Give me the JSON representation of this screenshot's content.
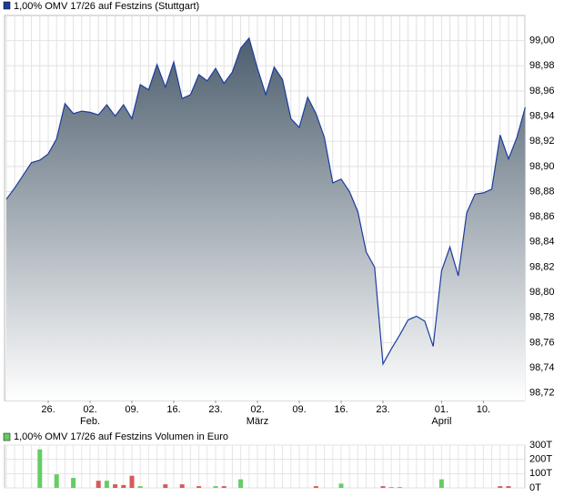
{
  "chart_data": [
    {
      "type": "area",
      "title": "1,00% OMV 17/26 auf Festzins (Stuttgart)",
      "color": "#1c3c9c",
      "fill_top": "#4d5e6e",
      "fill_bottom": "#ffffff",
      "grid": true,
      "categories": [
        null,
        null,
        null,
        null,
        null,
        "26.",
        null,
        null,
        null,
        null,
        "02.",
        null,
        null,
        null,
        null,
        "09.",
        null,
        null,
        null,
        null,
        "16.",
        null,
        null,
        null,
        null,
        "23.",
        null,
        null,
        null,
        null,
        "02.",
        null,
        null,
        null,
        null,
        "09.",
        null,
        null,
        null,
        null,
        "16.",
        null,
        null,
        null,
        null,
        "23.",
        null,
        null,
        null,
        null,
        null,
        null,
        "01.",
        null,
        null,
        null,
        null,
        "10.",
        null,
        null,
        null,
        null,
        null
      ],
      "month_labels": [
        null,
        null,
        null,
        null,
        null,
        null,
        null,
        null,
        null,
        null,
        "Feb.",
        null,
        null,
        null,
        null,
        null,
        null,
        null,
        null,
        null,
        null,
        null,
        null,
        null,
        null,
        null,
        null,
        null,
        null,
        null,
        "März",
        null,
        null,
        null,
        null,
        null,
        null,
        null,
        null,
        null,
        null,
        null,
        null,
        null,
        null,
        null,
        null,
        null,
        null,
        null,
        null,
        null,
        "April",
        null,
        null,
        null,
        null,
        null,
        null,
        null,
        null,
        null,
        null
      ],
      "values": [
        98.874,
        98.883,
        98.893,
        98.903,
        98.905,
        98.91,
        98.922,
        98.95,
        98.942,
        98.944,
        98.943,
        98.941,
        98.949,
        98.94,
        98.949,
        98.938,
        98.965,
        98.961,
        98.981,
        98.963,
        98.983,
        98.954,
        98.957,
        98.973,
        98.968,
        98.978,
        98.966,
        98.975,
        98.994,
        99.002,
        98.978,
        98.957,
        98.979,
        98.969,
        98.938,
        98.931,
        98.955,
        98.942,
        98.923,
        98.887,
        98.89,
        98.88,
        98.864,
        98.832,
        98.82,
        98.743,
        98.755,
        98.766,
        98.778,
        98.781,
        98.777,
        98.757,
        98.817,
        98.836,
        98.813,
        98.863,
        98.878,
        98.879,
        98.882,
        98.925,
        98.906,
        98.923,
        98.947
      ],
      "ylim": [
        98.714,
        99.02
      ],
      "yticks": [
        {
          "value": 98.72,
          "label": "98,72"
        },
        {
          "value": 98.74,
          "label": "98,74"
        },
        {
          "value": 98.76,
          "label": "98,76"
        },
        {
          "value": 98.78,
          "label": "98,78"
        },
        {
          "value": 98.8,
          "label": "98,80"
        },
        {
          "value": 98.82,
          "label": "98,82"
        },
        {
          "value": 98.84,
          "label": "98,84"
        },
        {
          "value": 98.86,
          "label": "98,86"
        },
        {
          "value": 98.88,
          "label": "98,88"
        },
        {
          "value": 98.9,
          "label": "98,90"
        },
        {
          "value": 98.92,
          "label": "98,92"
        },
        {
          "value": 98.94,
          "label": "98,94"
        },
        {
          "value": 98.96,
          "label": "98,96"
        },
        {
          "value": 98.98,
          "label": "98,98"
        },
        {
          "value": 99.0,
          "label": "99,00"
        }
      ]
    },
    {
      "type": "bar",
      "title": "1,00% OMV 17/26 auf Festzins Volumen in Euro",
      "color": "#66cc66",
      "grid": true,
      "values": [
        null,
        null,
        null,
        null,
        270000,
        null,
        95000,
        null,
        70000,
        null,
        null,
        50000,
        50000,
        25000,
        20000,
        85000,
        12000,
        null,
        null,
        25000,
        null,
        25000,
        null,
        12000,
        null,
        12000,
        12000,
        null,
        60000,
        null,
        null,
        null,
        null,
        null,
        null,
        null,
        null,
        12000,
        null,
        null,
        30000,
        null,
        null,
        null,
        null,
        12000,
        6000,
        6000,
        null,
        null,
        null,
        null,
        60000,
        null,
        null,
        null,
        null,
        null,
        null,
        12000,
        12000,
        null,
        null
      ],
      "colors": [
        null,
        null,
        null,
        null,
        "#66cc66",
        null,
        "#66cc66",
        null,
        "#66cc66",
        null,
        null,
        "#d45a5a",
        "#66cc66",
        "#d45a5a",
        "#d45a5a",
        "#d45a5a",
        "#66cc66",
        null,
        null,
        "#d45a5a",
        null,
        "#d45a5a",
        null,
        "#d45a5a",
        null,
        "#66cc66",
        "#d45a5a",
        null,
        "#66cc66",
        null,
        null,
        null,
        null,
        null,
        null,
        null,
        null,
        "#d45a5a",
        null,
        null,
        "#66cc66",
        null,
        null,
        null,
        null,
        "#d45a5a",
        "#66cc66",
        "#66cc66",
        null,
        null,
        null,
        null,
        "#66cc66",
        null,
        null,
        null,
        null,
        null,
        null,
        "#d45a5a",
        "#d45a5a",
        null,
        null
      ],
      "ylim": [
        0,
        300000
      ],
      "yticks": [
        {
          "value": 0,
          "label": "0T"
        },
        {
          "value": 100000,
          "label": "100T"
        },
        {
          "value": 200000,
          "label": "200T"
        },
        {
          "value": 300000,
          "label": "300T"
        }
      ]
    }
  ]
}
